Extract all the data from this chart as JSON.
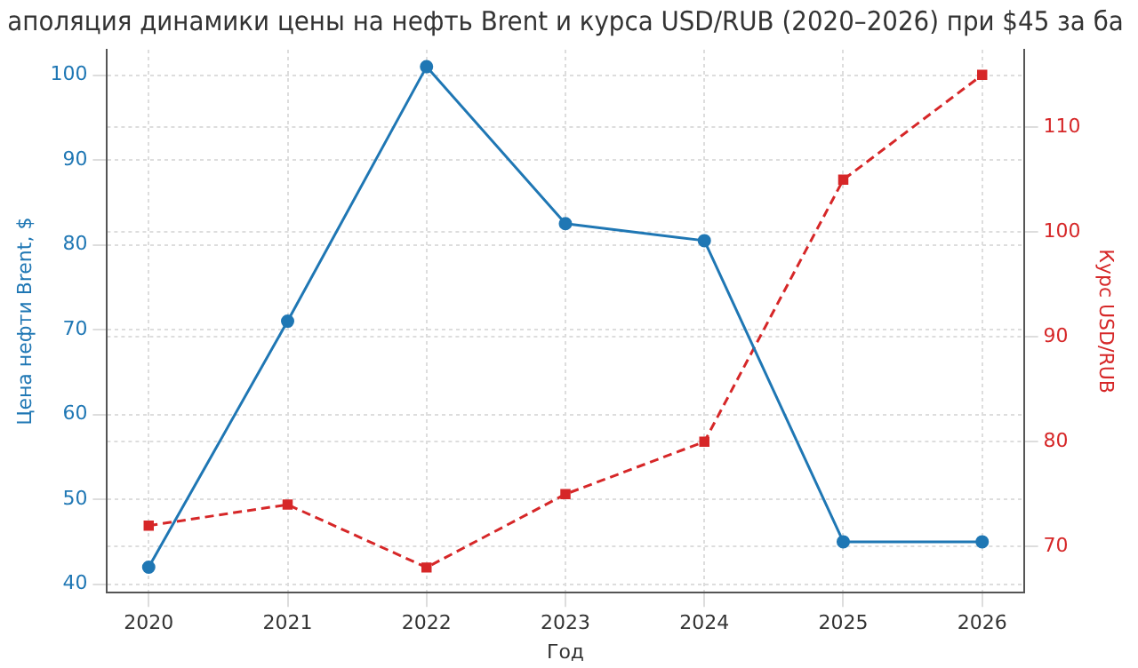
{
  "chart_data": {
    "type": "line",
    "title": "аполяция динамики цены на нефть Brent и курса USD/RUB (2020–2026) при $45 за ба",
    "xlabel": "Год",
    "ylabel": "Цена нефти Brent, $",
    "y2label": "Курс USD/RUB",
    "x": [
      2020,
      2021,
      2022,
      2023,
      2024,
      2025,
      2026
    ],
    "xlim": [
      2019.7,
      2026.3
    ],
    "xticks": [
      2020,
      2021,
      2022,
      2023,
      2024,
      2025,
      2026
    ],
    "ylim": [
      39,
      103
    ],
    "yticks": [
      40,
      50,
      60,
      70,
      80,
      90,
      100
    ],
    "y2lim": [
      65.6,
      117.4
    ],
    "y2ticks": [
      70,
      80,
      90,
      100,
      110
    ],
    "grid": true,
    "legend": false,
    "series": [
      {
        "color": "#1f77b4",
        "values": [
          42,
          71,
          101,
          82.5,
          80.5,
          45,
          45
        ],
        "marker": "circle",
        "line_style": "solid"
      },
      {
        "color": "#d62728",
        "values": [
          72,
          74,
          68,
          75,
          80,
          105,
          115
        ],
        "axis": "y2",
        "marker": "square",
        "line_style": "dashed"
      }
    ]
  }
}
